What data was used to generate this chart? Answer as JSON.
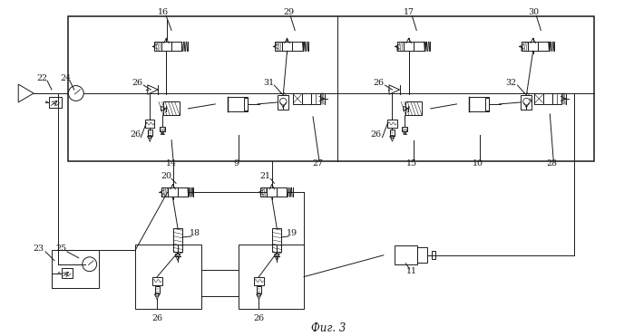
{
  "bg_color": "#ffffff",
  "line_color": "#1a1a1a",
  "fig_width": 6.99,
  "fig_height": 3.71,
  "dpi": 100,
  "caption": "Фиг. 3"
}
